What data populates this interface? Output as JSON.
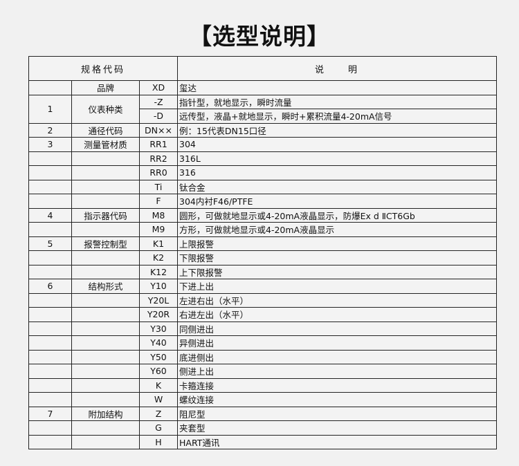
{
  "title": "【选型说明】",
  "header": {
    "code": "规格代码",
    "desc": "说　　明"
  },
  "rows": [
    {
      "no": "",
      "name": "品牌",
      "code": "XD",
      "desc": "玺达"
    },
    {
      "no": "1",
      "name": "仪表种类",
      "code": "-Z",
      "desc": "指针型，就地显示，瞬时流量",
      "span": 2
    },
    {
      "code": "-D",
      "desc": "远传型，液晶+就地显示，瞬时+累积流量4-20mA信号",
      "cont": true
    },
    {
      "no": "2",
      "name": "通径代码",
      "code": "DN××",
      "desc": "例：15代表DN15口径"
    },
    {
      "no": "3",
      "name": "测量管材质",
      "code": "RR1",
      "desc": "304"
    },
    {
      "no": "",
      "name": "",
      "code": "RR2",
      "desc": "316L"
    },
    {
      "no": "",
      "name": "",
      "code": "RR0",
      "desc": "316"
    },
    {
      "no": "",
      "name": "",
      "code": "Ti",
      "desc": "钛合金"
    },
    {
      "no": "",
      "name": "",
      "code": "F",
      "desc": "304内衬F46/PTFE"
    },
    {
      "no": "4",
      "name": "指示器代码",
      "code": "M8",
      "desc": "圆形，可做就地显示或4-20mA液晶显示，防爆Ex d ⅡCT6Gb"
    },
    {
      "no": "",
      "name": "",
      "code": "M9",
      "desc": "方形，可做就地显示或4-20mA液晶显示"
    },
    {
      "no": "5",
      "name": "报警控制型",
      "code": "K1",
      "desc": "上限报警"
    },
    {
      "no": "",
      "name": "",
      "code": "K2",
      "desc": "下限报警"
    },
    {
      "no": "",
      "name": "",
      "code": "K12",
      "desc": "上下限报警"
    },
    {
      "no": "6",
      "name": "结构形式",
      "code": "Y10",
      "desc": "下进上出"
    },
    {
      "no": "",
      "name": "",
      "code": "Y20L",
      "desc": "左进右出（水平）"
    },
    {
      "no": "",
      "name": "",
      "code": "Y20R",
      "desc": "右进左出（水平）"
    },
    {
      "no": "",
      "name": "",
      "code": "Y30",
      "desc": "同侧进出"
    },
    {
      "no": "",
      "name": "",
      "code": "Y40",
      "desc": "异侧进出"
    },
    {
      "no": "",
      "name": "",
      "code": "Y50",
      "desc": "底进侧出"
    },
    {
      "no": "",
      "name": "",
      "code": "Y60",
      "desc": "侧进上出"
    },
    {
      "no": "",
      "name": "",
      "code": "K",
      "desc": "卡箍连接"
    },
    {
      "no": "",
      "name": "",
      "code": "W",
      "desc": "螺纹连接"
    },
    {
      "no": "7",
      "name": "附加结构",
      "code": "Z",
      "desc": "阻尼型"
    },
    {
      "no": "",
      "name": "",
      "code": "G",
      "desc": "夹套型"
    },
    {
      "no": "",
      "name": "",
      "code": "H",
      "desc": "HART通讯"
    }
  ]
}
